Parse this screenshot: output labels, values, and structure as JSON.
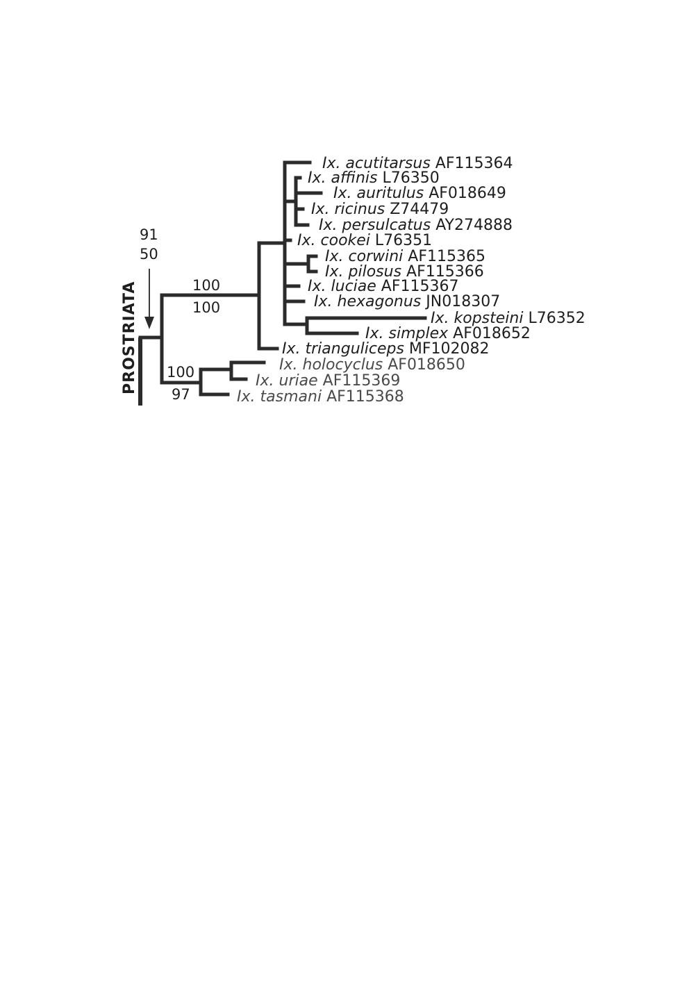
{
  "clade_label": "PROSTRIATA",
  "node_support": {
    "stem_top": "91",
    "stem_bottom": "50",
    "clade_a_top": "100",
    "clade_a_bottom": "100",
    "clade_b_top": "100",
    "clade_b_bottom": "97"
  },
  "taxa": [
    {
      "genus": "Ix.",
      "species": "acutitarsus",
      "accession": "AF115364"
    },
    {
      "genus": "Ix.",
      "species": "affinis",
      "accession": "L76350"
    },
    {
      "genus": "Ix.",
      "species": "auritulus",
      "accession": "AF018649"
    },
    {
      "genus": "Ix.",
      "species": "ricinus",
      "accession": "Z74479"
    },
    {
      "genus": "Ix.",
      "species": "persulcatus",
      "accession": "AY274888"
    },
    {
      "genus": "Ix.",
      "species": "cookei",
      "accession": "L76351"
    },
    {
      "genus": "Ix.",
      "species": "corwini",
      "accession": "AF115365"
    },
    {
      "genus": "Ix.",
      "species": "pilosus",
      "accession": "AF115366"
    },
    {
      "genus": "Ix.",
      "species": "luciae",
      "accession": "AF115367"
    },
    {
      "genus": "Ix.",
      "species": "hexagonus",
      "accession": "JN018307"
    },
    {
      "genus": "Ix.",
      "species": "kopsteini",
      "accession": "L76352"
    },
    {
      "genus": "Ix.",
      "species": "simplex",
      "accession": "AF018652"
    },
    {
      "genus": "Ix.",
      "species": "trianguliceps",
      "accession": "MF102082"
    },
    {
      "genus": "Ix.",
      "species": "holocyclus",
      "accession": "AF018650"
    },
    {
      "genus": "Ix.",
      "species": "uriae",
      "accession": "AF115369"
    },
    {
      "genus": "Ix.",
      "species": "tasmani",
      "accession": "AF115368"
    }
  ]
}
